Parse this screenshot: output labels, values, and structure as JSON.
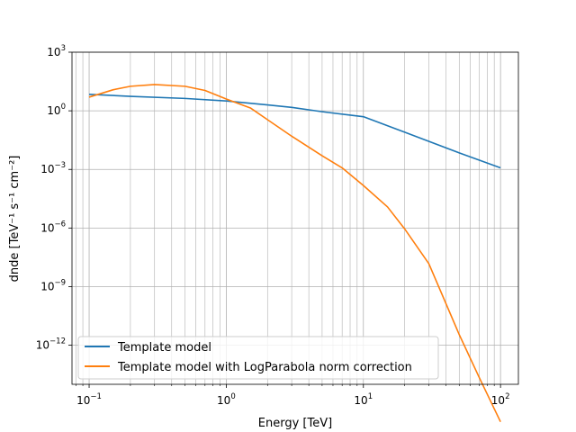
{
  "chart_data": {
    "type": "line",
    "title": "",
    "xlabel": "Energy [TeV]",
    "ylabel": "dnde [TeV⁻¹ s⁻¹ cm⁻²]",
    "xscale": "log",
    "yscale": "log",
    "xlim": [
      0.075,
      135
    ],
    "ylim": [
      1e-14,
      1000
    ],
    "grid": "both-major-minor-x",
    "legend": "lower-left",
    "x_ticks": [
      {
        "value": 0.1,
        "base": "10",
        "exp": "−1"
      },
      {
        "value": 1,
        "base": "10",
        "exp": "0"
      },
      {
        "value": 10,
        "base": "10",
        "exp": "1"
      },
      {
        "value": 100,
        "base": "10",
        "exp": "2"
      }
    ],
    "y_ticks": [
      {
        "value": 1e-12,
        "base": "10",
        "exp": "−12"
      },
      {
        "value": 1e-09,
        "base": "10",
        "exp": "−9"
      },
      {
        "value": 1e-06,
        "base": "10",
        "exp": "−6"
      },
      {
        "value": 0.001,
        "base": "10",
        "exp": "−3"
      },
      {
        "value": 1,
        "base": "10",
        "exp": "0"
      },
      {
        "value": 1000,
        "base": "10",
        "exp": "3"
      }
    ],
    "series": [
      {
        "name": "Template model",
        "color": "#1f77b4",
        "x": [
          0.1,
          0.2,
          0.5,
          1,
          2,
          3,
          5,
          10,
          20,
          50,
          100
        ],
        "y": [
          7,
          5.5,
          4.3,
          3.2,
          2.0,
          1.5,
          0.9,
          0.5,
          0.08,
          0.007,
          0.0012
        ]
      },
      {
        "name": "Template model with LogParabola norm correction",
        "color": "#ff7f0e",
        "x": [
          0.1,
          0.15,
          0.2,
          0.3,
          0.5,
          0.7,
          1,
          1.5,
          2,
          3,
          5,
          7,
          10,
          15,
          20,
          30,
          50,
          70,
          100
        ],
        "y": [
          5,
          12,
          18,
          22,
          18,
          11,
          4,
          1.4,
          0.35,
          0.05,
          0.005,
          0.0012,
          0.00015,
          1.2e-05,
          9e-07,
          1.5e-08,
          3.5e-12,
          2.2e-14,
          1.2e-16
        ]
      }
    ]
  }
}
